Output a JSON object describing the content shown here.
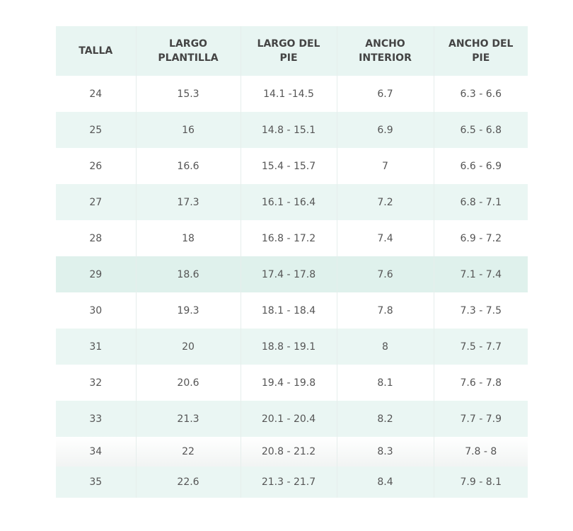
{
  "table": {
    "header": [
      "TALLA",
      "LARGO PLANTILLA",
      "LARGO DEL PIE",
      "ANCHO INTERIOR",
      "ANCHO DEL PIE"
    ],
    "rows": [
      [
        "24",
        "15.3",
        "14.1 -14.5",
        "6.7",
        "6.3 - 6.6"
      ],
      [
        "25",
        "16",
        "14.8 - 15.1",
        "6.9",
        "6.5 - 6.8"
      ],
      [
        "26",
        "16.6",
        "15.4 - 15.7",
        "7",
        "6.6 - 6.9"
      ],
      [
        "27",
        "17.3",
        "16.1 - 16.4",
        "7.2",
        "6.8 - 7.1"
      ],
      [
        "28",
        "18",
        "16.8 - 17.2",
        "7.4",
        "6.9 - 7.2"
      ],
      [
        "29",
        "18.6",
        "17.4 - 17.8",
        "7.6",
        "7.1 - 7.4"
      ],
      [
        "30",
        "19.3",
        "18.1 - 18.4",
        "7.8",
        "7.3 - 7.5"
      ],
      [
        "31",
        "20",
        "18.8 - 19.1",
        "8",
        "7.5 - 7.7"
      ],
      [
        "32",
        "20.6",
        "19.4 - 19.8",
        "8.1",
        "7.6 - 7.8"
      ],
      [
        "33",
        "21.3",
        "20.1 - 20.4",
        "8.2",
        "7.7 - 7.9"
      ],
      [
        "34",
        "22",
        "20.8 - 21.2",
        "8.3",
        "7.8 - 8"
      ],
      [
        "35",
        "22.6",
        "21.3 - 21.7",
        "8.4",
        "7.9 - 8.1"
      ]
    ]
  }
}
